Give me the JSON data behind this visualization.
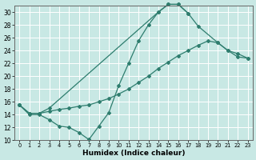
{
  "bg_color": "#c8e8e4",
  "grid_color": "#ffffff",
  "line_color": "#2e7d6e",
  "xlabel": "Humidex (Indice chaleur)",
  "xlim": [
    -0.5,
    23.5
  ],
  "ylim": [
    10,
    31
  ],
  "yticks": [
    10,
    12,
    14,
    16,
    18,
    20,
    22,
    24,
    26,
    28,
    30
  ],
  "xticks": [
    0,
    1,
    2,
    3,
    4,
    5,
    6,
    7,
    8,
    9,
    10,
    11,
    12,
    13,
    14,
    15,
    16,
    17,
    18,
    19,
    20,
    21,
    22,
    23
  ],
  "series1_x": [
    0,
    1,
    2,
    3,
    4,
    5,
    6,
    7,
    8,
    9,
    10,
    11,
    12,
    13,
    14,
    15,
    16,
    17
  ],
  "series1_y": [
    15.5,
    14.0,
    14.0,
    13.2,
    12.2,
    12.0,
    11.2,
    10.1,
    12.2,
    14.3,
    18.5,
    22.0,
    25.5,
    28.0,
    30.0,
    31.2,
    31.2,
    29.8
  ],
  "series2_x": [
    0,
    1,
    2,
    3,
    4,
    5,
    6,
    7,
    8,
    9,
    10,
    11,
    12,
    13,
    14,
    15,
    16,
    17,
    18,
    19,
    20,
    21,
    22,
    23
  ],
  "series2_y": [
    15.5,
    14.2,
    14.2,
    14.5,
    14.8,
    15.0,
    15.3,
    15.5,
    16.0,
    16.5,
    17.2,
    18.0,
    19.0,
    20.0,
    21.2,
    22.2,
    23.2,
    24.0,
    24.8,
    25.5,
    25.2,
    24.0,
    23.0,
    22.8
  ],
  "series3_x": [
    0,
    1,
    2,
    3,
    14,
    15,
    16,
    17,
    18,
    20,
    21,
    22,
    23
  ],
  "series3_y": [
    15.5,
    14.2,
    14.2,
    15.0,
    30.0,
    31.2,
    31.2,
    29.8,
    27.8,
    25.2,
    24.0,
    23.5,
    22.8
  ]
}
